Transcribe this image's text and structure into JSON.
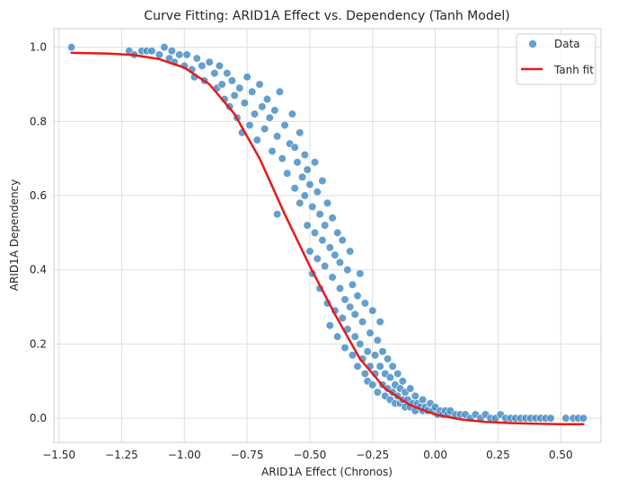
{
  "chart_data": {
    "type": "scatter",
    "title": "Curve Fitting: ARID1A Effect vs. Dependency (Tanh Model)",
    "xlabel": "ARID1A Effect (Chronos)",
    "ylabel": "ARID1A Dependency",
    "xlim": [
      -1.52,
      0.66
    ],
    "ylim": [
      -0.065,
      1.05
    ],
    "x_ticks": [
      -1.5,
      -1.25,
      -1.0,
      -0.75,
      -0.5,
      -0.25,
      0.0,
      0.25,
      0.5
    ],
    "x_tick_labels": [
      "−1.50",
      "−1.25",
      "−1.00",
      "−0.75",
      "−0.50",
      "−0.25",
      "0.00",
      "0.25",
      "0.50"
    ],
    "y_ticks": [
      0.0,
      0.2,
      0.4,
      0.6,
      0.8,
      1.0
    ],
    "y_tick_labels": [
      "0.0",
      "0.2",
      "0.4",
      "0.6",
      "0.8",
      "1.0"
    ],
    "grid": true,
    "legend_position": "top-right",
    "series": [
      {
        "name": "Data",
        "kind": "scatter",
        "color": "#3d87c0",
        "points": [
          [
            -1.45,
            1.0
          ],
          [
            -1.22,
            0.99
          ],
          [
            -1.2,
            0.98
          ],
          [
            -1.17,
            0.99
          ],
          [
            -1.15,
            0.99
          ],
          [
            -1.13,
            0.99
          ],
          [
            -1.1,
            0.98
          ],
          [
            -1.08,
            1.0
          ],
          [
            -1.06,
            0.97
          ],
          [
            -1.05,
            0.99
          ],
          [
            -1.04,
            0.96
          ],
          [
            -1.02,
            0.98
          ],
          [
            -1.0,
            0.95
          ],
          [
            -0.99,
            0.98
          ],
          [
            -0.97,
            0.94
          ],
          [
            -0.96,
            0.92
          ],
          [
            -0.95,
            0.97
          ],
          [
            -0.93,
            0.95
          ],
          [
            -0.92,
            0.91
          ],
          [
            -0.9,
            0.96
          ],
          [
            -0.88,
            0.93
          ],
          [
            -0.87,
            0.89
          ],
          [
            -0.86,
            0.95
          ],
          [
            -0.85,
            0.9
          ],
          [
            -0.84,
            0.86
          ],
          [
            -0.83,
            0.93
          ],
          [
            -0.82,
            0.84
          ],
          [
            -0.81,
            0.91
          ],
          [
            -0.8,
            0.87
          ],
          [
            -0.79,
            0.81
          ],
          [
            -0.78,
            0.89
          ],
          [
            -0.77,
            0.77
          ],
          [
            -0.76,
            0.85
          ],
          [
            -0.75,
            0.92
          ],
          [
            -0.74,
            0.79
          ],
          [
            -0.73,
            0.88
          ],
          [
            -0.72,
            0.82
          ],
          [
            -0.71,
            0.75
          ],
          [
            -0.7,
            0.9
          ],
          [
            -0.69,
            0.84
          ],
          [
            -0.68,
            0.78
          ],
          [
            -0.67,
            0.86
          ],
          [
            -0.66,
            0.81
          ],
          [
            -0.65,
            0.72
          ],
          [
            -0.64,
            0.83
          ],
          [
            -0.63,
            0.55
          ],
          [
            -0.63,
            0.76
          ],
          [
            -0.62,
            0.88
          ],
          [
            -0.61,
            0.7
          ],
          [
            -0.6,
            0.79
          ],
          [
            -0.59,
            0.66
          ],
          [
            -0.58,
            0.74
          ],
          [
            -0.57,
            0.82
          ],
          [
            -0.56,
            0.62
          ],
          [
            -0.56,
            0.73
          ],
          [
            -0.55,
            0.69
          ],
          [
            -0.54,
            0.58
          ],
          [
            -0.54,
            0.77
          ],
          [
            -0.53,
            0.65
          ],
          [
            -0.52,
            0.6
          ],
          [
            -0.52,
            0.71
          ],
          [
            -0.51,
            0.52
          ],
          [
            -0.51,
            0.67
          ],
          [
            -0.5,
            0.45
          ],
          [
            -0.5,
            0.63
          ],
          [
            -0.49,
            0.39
          ],
          [
            -0.49,
            0.57
          ],
          [
            -0.48,
            0.69
          ],
          [
            -0.48,
            0.5
          ],
          [
            -0.47,
            0.43
          ],
          [
            -0.47,
            0.61
          ],
          [
            -0.46,
            0.35
          ],
          [
            -0.46,
            0.55
          ],
          [
            -0.45,
            0.48
          ],
          [
            -0.45,
            0.64
          ],
          [
            -0.44,
            0.41
          ],
          [
            -0.44,
            0.52
          ],
          [
            -0.43,
            0.31
          ],
          [
            -0.43,
            0.58
          ],
          [
            -0.42,
            0.46
          ],
          [
            -0.42,
            0.25
          ],
          [
            -0.41,
            0.38
          ],
          [
            -0.41,
            0.54
          ],
          [
            -0.4,
            0.29
          ],
          [
            -0.4,
            0.44
          ],
          [
            -0.39,
            0.5
          ],
          [
            -0.39,
            0.22
          ],
          [
            -0.38,
            0.35
          ],
          [
            -0.38,
            0.42
          ],
          [
            -0.37,
            0.27
          ],
          [
            -0.37,
            0.48
          ],
          [
            -0.36,
            0.32
          ],
          [
            -0.36,
            0.19
          ],
          [
            -0.35,
            0.4
          ],
          [
            -0.35,
            0.24
          ],
          [
            -0.34,
            0.3
          ],
          [
            -0.34,
            0.45
          ],
          [
            -0.33,
            0.17
          ],
          [
            -0.33,
            0.36
          ],
          [
            -0.32,
            0.22
          ],
          [
            -0.32,
            0.28
          ],
          [
            -0.31,
            0.14
          ],
          [
            -0.31,
            0.33
          ],
          [
            -0.3,
            0.2
          ],
          [
            -0.3,
            0.39
          ],
          [
            -0.29,
            0.16
          ],
          [
            -0.29,
            0.26
          ],
          [
            -0.28,
            0.12
          ],
          [
            -0.28,
            0.31
          ],
          [
            -0.27,
            0.18
          ],
          [
            -0.27,
            0.1
          ],
          [
            -0.26,
            0.23
          ],
          [
            -0.26,
            0.14
          ],
          [
            -0.25,
            0.29
          ],
          [
            -0.25,
            0.09
          ],
          [
            -0.24,
            0.17
          ],
          [
            -0.24,
            0.12
          ],
          [
            -0.23,
            0.21
          ],
          [
            -0.23,
            0.07
          ],
          [
            -0.22,
            0.14
          ],
          [
            -0.22,
            0.26
          ],
          [
            -0.21,
            0.09
          ],
          [
            -0.21,
            0.18
          ],
          [
            -0.2,
            0.06
          ],
          [
            -0.2,
            0.12
          ],
          [
            -0.19,
            0.16
          ],
          [
            -0.19,
            0.08
          ],
          [
            -0.18,
            0.05
          ],
          [
            -0.18,
            0.11
          ],
          [
            -0.17,
            0.14
          ],
          [
            -0.17,
            0.07
          ],
          [
            -0.16,
            0.04
          ],
          [
            -0.16,
            0.09
          ],
          [
            -0.15,
            0.12
          ],
          [
            -0.15,
            0.06
          ],
          [
            -0.14,
            0.04
          ],
          [
            -0.14,
            0.08
          ],
          [
            -0.13,
            0.05
          ],
          [
            -0.13,
            0.1
          ],
          [
            -0.12,
            0.03
          ],
          [
            -0.12,
            0.07
          ],
          [
            -0.11,
            0.05
          ],
          [
            -0.1,
            0.08
          ],
          [
            -0.1,
            0.03
          ],
          [
            -0.09,
            0.04
          ],
          [
            -0.08,
            0.06
          ],
          [
            -0.08,
            0.02
          ],
          [
            -0.07,
            0.04
          ],
          [
            -0.06,
            0.03
          ],
          [
            -0.05,
            0.05
          ],
          [
            -0.05,
            0.02
          ],
          [
            -0.04,
            0.03
          ],
          [
            -0.03,
            0.02
          ],
          [
            -0.02,
            0.04
          ],
          [
            -0.01,
            0.02
          ],
          [
            0.0,
            0.03
          ],
          [
            0.01,
            0.01
          ],
          [
            0.02,
            0.02
          ],
          [
            0.03,
            0.01
          ],
          [
            0.04,
            0.02
          ],
          [
            0.05,
            0.01
          ],
          [
            0.06,
            0.02
          ],
          [
            0.08,
            0.01
          ],
          [
            0.1,
            0.01
          ],
          [
            0.12,
            0.01
          ],
          [
            0.14,
            0.0
          ],
          [
            0.16,
            0.01
          ],
          [
            0.18,
            0.0
          ],
          [
            0.2,
            0.01
          ],
          [
            0.22,
            0.0
          ],
          [
            0.24,
            0.0
          ],
          [
            0.26,
            0.01
          ],
          [
            0.28,
            0.0
          ],
          [
            0.3,
            0.0
          ],
          [
            0.32,
            0.0
          ],
          [
            0.34,
            0.0
          ],
          [
            0.36,
            0.0
          ],
          [
            0.38,
            0.0
          ],
          [
            0.4,
            0.0
          ],
          [
            0.42,
            0.0
          ],
          [
            0.44,
            0.0
          ],
          [
            0.46,
            0.0
          ],
          [
            0.52,
            0.0
          ],
          [
            0.55,
            0.0
          ],
          [
            0.57,
            0.0
          ],
          [
            0.59,
            0.0
          ]
        ]
      },
      {
        "name": "Tanh fit",
        "kind": "line",
        "color": "#e8191a",
        "points": [
          [
            -1.45,
            0.985
          ],
          [
            -1.3,
            0.983
          ],
          [
            -1.2,
            0.979
          ],
          [
            -1.1,
            0.968
          ],
          [
            -1.0,
            0.945
          ],
          [
            -0.9,
            0.9
          ],
          [
            -0.8,
            0.82
          ],
          [
            -0.7,
            0.7
          ],
          [
            -0.6,
            0.55
          ],
          [
            -0.5,
            0.41
          ],
          [
            -0.4,
            0.28
          ],
          [
            -0.3,
            0.16
          ],
          [
            -0.2,
            0.08
          ],
          [
            -0.1,
            0.035
          ],
          [
            0.0,
            0.01
          ],
          [
            0.1,
            -0.003
          ],
          [
            0.2,
            -0.01
          ],
          [
            0.3,
            -0.013
          ],
          [
            0.4,
            -0.015
          ],
          [
            0.5,
            -0.016
          ],
          [
            0.59,
            -0.016
          ]
        ]
      }
    ]
  }
}
